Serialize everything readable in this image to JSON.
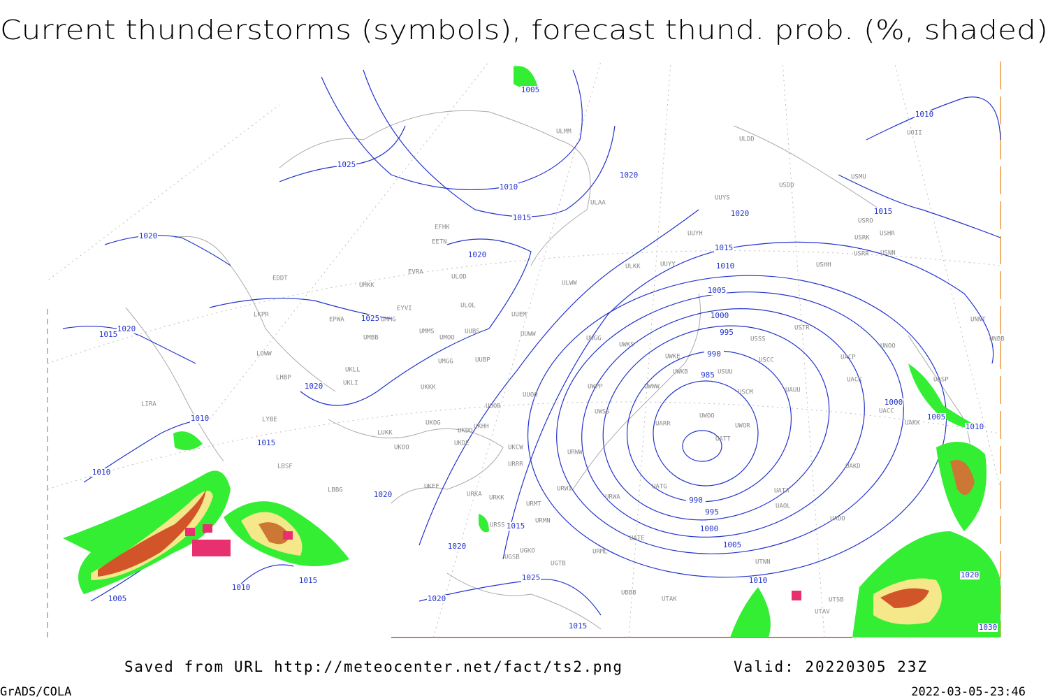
{
  "header": {
    "title": "Current thunderstorms (symbols), forecast thund. prob. (%, shaded)"
  },
  "footer": {
    "source": "Saved from URL http://meteocenter.net/fact/ts2.png",
    "valid": "Valid: 20220305 23Z",
    "software": "GrADS/COLA",
    "timestamp": "2022-03-05-23:46"
  },
  "map": {
    "isobar_labels": [
      1005,
      1010,
      1025,
      1010,
      1020,
      1015,
      1020,
      1015,
      1020,
      1020,
      1015,
      1010,
      1005,
      1000,
      995,
      990,
      985,
      1025,
      1020,
      1015,
      1020,
      1010,
      1015,
      1010,
      1000,
      1005,
      1010,
      990,
      995,
      1000,
      1005,
      1010,
      1020,
      1015,
      1020,
      1025,
      1020,
      1015,
      1010,
      1015,
      1005,
      1020,
      1030
    ],
    "stations": [
      "ULDD",
      "USDD",
      "USMU",
      "ULAA",
      "UUYS",
      "USRO",
      "USHR",
      "USRK",
      "UUYH",
      "USRR",
      "USNN",
      "ULKK",
      "UUYY",
      "USHH",
      "ULWW",
      "UMKK",
      "EVRA",
      "ULOD",
      "EDDT",
      "EYVI",
      "ULOL",
      "UUEM",
      "LKPR",
      "EPWA",
      "UMMG",
      "UMMS",
      "UUBS",
      "UUWW",
      "UMOO",
      "UMBB",
      "UWGG",
      "UWKS",
      "USSS",
      "USTR",
      "UNNT",
      "UNBB",
      "UNOO",
      "LOWW",
      "UMGG",
      "UUBP",
      "UWKE",
      "USCC",
      "UACP",
      "UKLL",
      "UKLI",
      "LHBP",
      "UKKK",
      "UUOO",
      "UWPP",
      "UWWW",
      "UWKB",
      "USUU",
      "UACK",
      "UASP",
      "USCM",
      "UAUU",
      "UUOB",
      "UKHH",
      "UKDD",
      "UKDE",
      "UWSS",
      "UACC",
      "LYBE",
      "UKOG",
      "LUKK",
      "UWOO",
      "UWOR",
      "UARR",
      "UAKK",
      "UATT",
      "UKOO",
      "UKCW",
      "URWW",
      "URRR",
      "LBSF",
      "UAKD",
      "LBBG",
      "UKFF",
      "URKA",
      "URKK",
      "URWI",
      "UATG",
      "URWA",
      "URMT",
      "UATA",
      "UAOL",
      "URMN",
      "URSS",
      "UATE",
      "UAOO",
      "URML",
      "UGSB",
      "UGKO",
      "UGTB",
      "UTNN",
      "UBBB",
      "UTAK",
      "UTSB",
      "UTAV",
      "ULMM",
      "EFHK",
      "EETN",
      "UOII",
      "LIRA"
    ]
  }
}
